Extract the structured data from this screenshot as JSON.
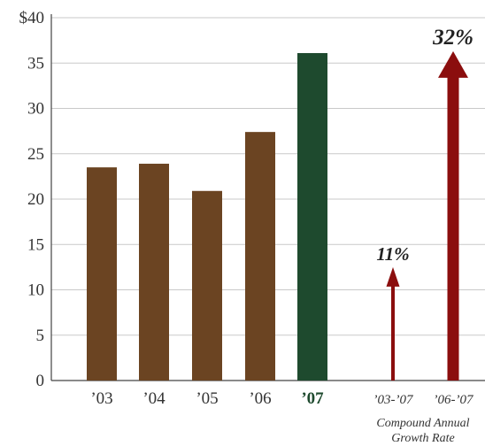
{
  "chart_data": {
    "type": "bar",
    "ylim": [
      0,
      40
    ],
    "yticks": [
      {
        "value": 0,
        "label": "0"
      },
      {
        "value": 5,
        "label": "5"
      },
      {
        "value": 10,
        "label": "10"
      },
      {
        "value": 15,
        "label": "15"
      },
      {
        "value": 20,
        "label": "20"
      },
      {
        "value": 25,
        "label": "25"
      },
      {
        "value": 30,
        "label": "30"
      },
      {
        "value": 35,
        "label": "35"
      },
      {
        "value": 40,
        "label": "$40"
      }
    ],
    "grid": true,
    "categories": [
      "’03",
      "’04",
      "’05",
      "’06",
      "’07"
    ],
    "values": [
      23.5,
      23.9,
      20.9,
      27.4,
      36.1
    ],
    "colors": [
      "#6b4422",
      "#6b4422",
      "#6b4422",
      "#6b4422",
      "#1e4a2e"
    ],
    "highlight_category": "’07",
    "growth": {
      "caption_lines": [
        "Compound Annual",
        "Growth Rate"
      ],
      "items": [
        {
          "label": "’03-’07",
          "rate": "11%",
          "value": 12.5
        },
        {
          "label": "’06-’07",
          "rate": "32%",
          "value": 36.3
        }
      ],
      "color": "#8b0e0e"
    }
  }
}
